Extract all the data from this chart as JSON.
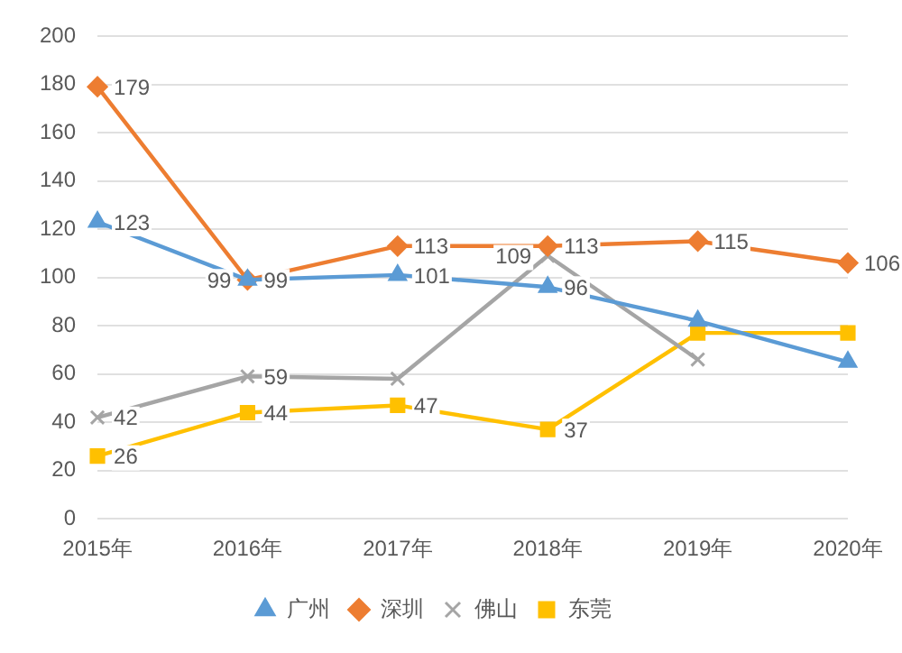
{
  "chart_data": {
    "type": "line",
    "categories": [
      "2015年",
      "2016年",
      "2017年",
      "2018年",
      "2019年",
      "2020年"
    ],
    "series": [
      {
        "name": "广州",
        "color": "#5b9bd5",
        "marker": "triangle",
        "values": [
          123,
          99,
          101,
          96,
          82,
          65
        ],
        "value_labels": [
          "123",
          "99",
          "101",
          "96",
          null,
          null
        ]
      },
      {
        "name": "深圳",
        "color": "#ed7d31",
        "marker": "diamond",
        "values": [
          179,
          99,
          113,
          113,
          115,
          106
        ],
        "value_labels": [
          "179",
          "99",
          "113",
          "113",
          "115",
          "106"
        ]
      },
      {
        "name": "佛山",
        "color": "#a5a5a5",
        "marker": "cross",
        "values": [
          42,
          59,
          58,
          109,
          66,
          null
        ],
        "value_labels": [
          "42",
          "59",
          null,
          "109",
          null,
          null
        ]
      },
      {
        "name": "东莞",
        "color": "#ffc000",
        "marker": "square",
        "values": [
          26,
          44,
          47,
          37,
          77,
          77
        ],
        "value_labels": [
          "26",
          "44",
          "47",
          "37",
          null,
          null
        ]
      }
    ],
    "ylim": [
      0,
      200
    ],
    "yticks": [
      0,
      20,
      40,
      60,
      80,
      100,
      120,
      140,
      160,
      180,
      200
    ],
    "grid": "y",
    "legend": "bottom"
  }
}
